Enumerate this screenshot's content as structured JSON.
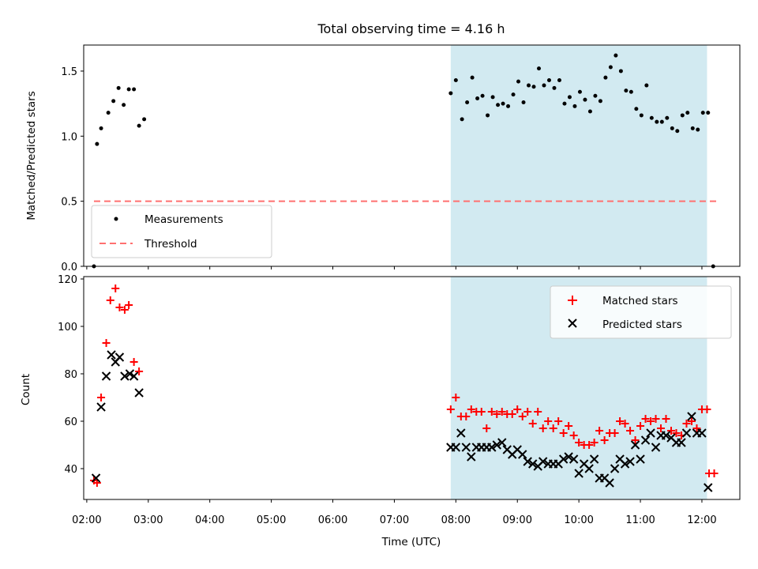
{
  "title": "Total observing time = 4.16 h",
  "colors": {
    "shade": "#add8e6",
    "threshold": "#ff7070",
    "matched": "#ff0000",
    "predicted": "#000000",
    "measurement": "#000000"
  },
  "chart_data": [
    {
      "type": "scatter",
      "ylabel": "Matched/Predicted stars",
      "xlim": [
        "02:07",
        "12:17"
      ],
      "ylim": [
        0.0,
        1.7
      ],
      "yticks": [
        "0.0",
        "0.5",
        "1.0",
        "1.5"
      ],
      "shaded_span": [
        "07:55",
        "12:05"
      ],
      "legend": {
        "placement": "lower-left",
        "entries": [
          "Measurements",
          "Threshold"
        ]
      },
      "threshold": {
        "name": "Threshold",
        "y": 0.5,
        "x_range": [
          "02:07",
          "12:17"
        ],
        "style": "dashed"
      },
      "series": [
        {
          "name": "Measurements",
          "points": [
            [
              "02:07",
              0.0
            ],
            [
              "02:10",
              0.94
            ],
            [
              "02:14",
              1.06
            ],
            [
              "02:21",
              1.18
            ],
            [
              "02:26",
              1.27
            ],
            [
              "02:31",
              1.37
            ],
            [
              "02:36",
              1.24
            ],
            [
              "02:41",
              1.36
            ],
            [
              "02:46",
              1.36
            ],
            [
              "02:51",
              1.08
            ],
            [
              "02:56",
              1.13
            ],
            [
              "07:55",
              1.33
            ],
            [
              "08:00",
              1.43
            ],
            [
              "08:06",
              1.13
            ],
            [
              "08:11",
              1.26
            ],
            [
              "08:16",
              1.45
            ],
            [
              "08:21",
              1.29
            ],
            [
              "08:26",
              1.31
            ],
            [
              "08:31",
              1.16
            ],
            [
              "08:36",
              1.3
            ],
            [
              "08:41",
              1.24
            ],
            [
              "08:46",
              1.25
            ],
            [
              "08:51",
              1.23
            ],
            [
              "08:56",
              1.32
            ],
            [
              "09:01",
              1.42
            ],
            [
              "09:06",
              1.26
            ],
            [
              "09:11",
              1.39
            ],
            [
              "09:16",
              1.38
            ],
            [
              "09:21",
              1.52
            ],
            [
              "09:26",
              1.39
            ],
            [
              "09:31",
              1.43
            ],
            [
              "09:36",
              1.37
            ],
            [
              "09:41",
              1.43
            ],
            [
              "09:46",
              1.25
            ],
            [
              "09:51",
              1.3
            ],
            [
              "09:56",
              1.23
            ],
            [
              "10:01",
              1.34
            ],
            [
              "10:06",
              1.28
            ],
            [
              "10:11",
              1.19
            ],
            [
              "10:16",
              1.31
            ],
            [
              "10:21",
              1.27
            ],
            [
              "10:26",
              1.45
            ],
            [
              "10:31",
              1.53
            ],
            [
              "10:36",
              1.62
            ],
            [
              "10:41",
              1.5
            ],
            [
              "10:46",
              1.35
            ],
            [
              "10:51",
              1.34
            ],
            [
              "10:56",
              1.21
            ],
            [
              "11:01",
              1.16
            ],
            [
              "11:06",
              1.39
            ],
            [
              "11:11",
              1.14
            ],
            [
              "11:16",
              1.11
            ],
            [
              "11:21",
              1.11
            ],
            [
              "11:26",
              1.14
            ],
            [
              "11:31",
              1.06
            ],
            [
              "11:36",
              1.04
            ],
            [
              "11:41",
              1.16
            ],
            [
              "11:46",
              1.18
            ],
            [
              "11:51",
              1.06
            ],
            [
              "11:56",
              1.05
            ],
            [
              "12:01",
              1.18
            ],
            [
              "12:06",
              1.18
            ],
            [
              "12:11",
              0.0
            ]
          ]
        }
      ]
    },
    {
      "type": "scatter",
      "xlabel": "Time (UTC)",
      "ylabel": "Count",
      "xlim": [
        "01:57",
        "12:37"
      ],
      "ylim": [
        27,
        121
      ],
      "yticks": [
        "40",
        "60",
        "80",
        "100",
        "120"
      ],
      "xticks": [
        "02:00",
        "03:00",
        "04:00",
        "05:00",
        "06:00",
        "07:00",
        "08:00",
        "09:00",
        "10:00",
        "11:00",
        "12:00"
      ],
      "shaded_span": [
        "07:55",
        "12:05"
      ],
      "legend": {
        "placement": "top-right",
        "entries": [
          "Matched stars",
          "Predicted stars"
        ]
      },
      "series": [
        {
          "name": "Matched stars",
          "marker": "plus",
          "points": [
            [
              "02:07",
              35
            ],
            [
              "02:10",
              34
            ],
            [
              "02:14",
              70
            ],
            [
              "02:19",
              93
            ],
            [
              "02:23",
              111
            ],
            [
              "02:28",
              116
            ],
            [
              "02:32",
              108
            ],
            [
              "02:37",
              107
            ],
            [
              "02:41",
              109
            ],
            [
              "02:46",
              85
            ],
            [
              "02:51",
              81
            ],
            [
              "07:55",
              65
            ],
            [
              "08:00",
              70
            ],
            [
              "08:05",
              62
            ],
            [
              "08:10",
              62
            ],
            [
              "08:15",
              65
            ],
            [
              "08:20",
              64
            ],
            [
              "08:25",
              64
            ],
            [
              "08:30",
              57
            ],
            [
              "08:35",
              64
            ],
            [
              "08:40",
              63
            ],
            [
              "08:45",
              64
            ],
            [
              "08:50",
              63
            ],
            [
              "08:55",
              63
            ],
            [
              "09:00",
              65
            ],
            [
              "09:05",
              62
            ],
            [
              "09:10",
              64
            ],
            [
              "09:15",
              59
            ],
            [
              "09:20",
              64
            ],
            [
              "09:25",
              57
            ],
            [
              "09:30",
              60
            ],
            [
              "09:35",
              57
            ],
            [
              "09:40",
              60
            ],
            [
              "09:45",
              55
            ],
            [
              "09:50",
              58
            ],
            [
              "09:55",
              54
            ],
            [
              "10:00",
              51
            ],
            [
              "10:05",
              50
            ],
            [
              "10:10",
              50
            ],
            [
              "10:15",
              51
            ],
            [
              "10:20",
              56
            ],
            [
              "10:25",
              52
            ],
            [
              "10:30",
              55
            ],
            [
              "10:35",
              55
            ],
            [
              "10:40",
              60
            ],
            [
              "10:45",
              59
            ],
            [
              "10:50",
              56
            ],
            [
              "10:55",
              52
            ],
            [
              "11:00",
              58
            ],
            [
              "11:05",
              61
            ],
            [
              "11:10",
              60
            ],
            [
              "11:15",
              61
            ],
            [
              "11:20",
              57
            ],
            [
              "11:25",
              61
            ],
            [
              "11:30",
              56
            ],
            [
              "11:35",
              55
            ],
            [
              "11:40",
              54
            ],
            [
              "11:45",
              59
            ],
            [
              "11:50",
              60
            ],
            [
              "11:55",
              57
            ],
            [
              "12:00",
              65
            ],
            [
              "12:05",
              65
            ],
            [
              "12:07",
              38
            ],
            [
              "12:12",
              38
            ]
          ]
        },
        {
          "name": "Predicted stars",
          "marker": "x",
          "points": [
            [
              "02:09",
              36
            ],
            [
              "02:14",
              66
            ],
            [
              "02:19",
              79
            ],
            [
              "02:24",
              88
            ],
            [
              "02:28",
              85
            ],
            [
              "02:32",
              87
            ],
            [
              "02:37",
              79
            ],
            [
              "02:42",
              80
            ],
            [
              "02:46",
              79
            ],
            [
              "02:51",
              72
            ],
            [
              "07:55",
              49
            ],
            [
              "08:00",
              49
            ],
            [
              "08:05",
              55
            ],
            [
              "08:10",
              49
            ],
            [
              "08:15",
              45
            ],
            [
              "08:20",
              49
            ],
            [
              "08:25",
              49
            ],
            [
              "08:30",
              49
            ],
            [
              "08:35",
              49
            ],
            [
              "08:40",
              50
            ],
            [
              "08:45",
              51
            ],
            [
              "08:50",
              48
            ],
            [
              "08:55",
              46
            ],
            [
              "09:00",
              48
            ],
            [
              "09:05",
              46
            ],
            [
              "09:10",
              43
            ],
            [
              "09:15",
              42
            ],
            [
              "09:20",
              41
            ],
            [
              "09:25",
              43
            ],
            [
              "09:30",
              42
            ],
            [
              "09:35",
              42
            ],
            [
              "09:40",
              42
            ],
            [
              "09:45",
              44
            ],
            [
              "09:50",
              45
            ],
            [
              "09:55",
              44
            ],
            [
              "10:00",
              38
            ],
            [
              "10:05",
              42
            ],
            [
              "10:10",
              40
            ],
            [
              "10:15",
              44
            ],
            [
              "10:20",
              36
            ],
            [
              "10:25",
              36
            ],
            [
              "10:30",
              34
            ],
            [
              "10:35",
              40
            ],
            [
              "10:40",
              44
            ],
            [
              "10:45",
              42
            ],
            [
              "10:50",
              43
            ],
            [
              "10:55",
              50
            ],
            [
              "11:00",
              44
            ],
            [
              "11:05",
              52
            ],
            [
              "11:10",
              55
            ],
            [
              "11:15",
              49
            ],
            [
              "11:20",
              54
            ],
            [
              "11:25",
              54
            ],
            [
              "11:30",
              53
            ],
            [
              "11:35",
              51
            ],
            [
              "11:40",
              51
            ],
            [
              "11:45",
              55
            ],
            [
              "11:50",
              62
            ],
            [
              "11:55",
              55
            ],
            [
              "12:00",
              55
            ],
            [
              "12:06",
              32
            ]
          ]
        }
      ]
    }
  ]
}
